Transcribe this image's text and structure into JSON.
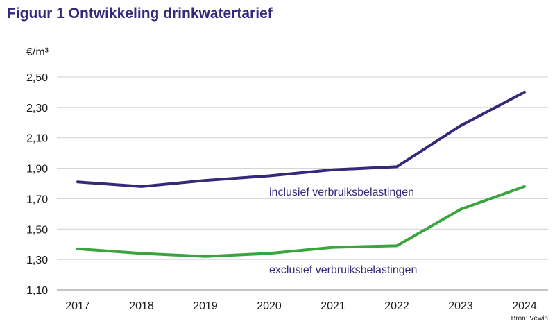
{
  "chart_data": {
    "type": "line",
    "title": "Figuur 1 Ontwikkeling drinkwatertarief",
    "ylabel": "€/m³",
    "xlabel": "",
    "ylim": [
      1.1,
      2.5
    ],
    "y_ticks": [
      "1,10",
      "1,30",
      "1,50",
      "1,70",
      "1,90",
      "2,10",
      "2,30",
      "2,50"
    ],
    "y_tick_values": [
      1.1,
      1.3,
      1.5,
      1.7,
      1.9,
      2.1,
      2.3,
      2.5
    ],
    "categories": [
      "2017",
      "2018",
      "2019",
      "2020",
      "2021",
      "2022",
      "2023",
      "2024"
    ],
    "grid": true,
    "series": [
      {
        "name": "inclusief verbruiksbelastingen",
        "color": "#35297a",
        "values": [
          1.81,
          1.78,
          1.82,
          1.85,
          1.89,
          1.91,
          2.18,
          2.4
        ]
      },
      {
        "name": "exclusief verbruiksbelastingen",
        "color": "#3aa53e",
        "values": [
          1.37,
          1.34,
          1.32,
          1.34,
          1.38,
          1.39,
          1.63,
          1.78
        ]
      }
    ],
    "source": "Bron: Vewin"
  }
}
